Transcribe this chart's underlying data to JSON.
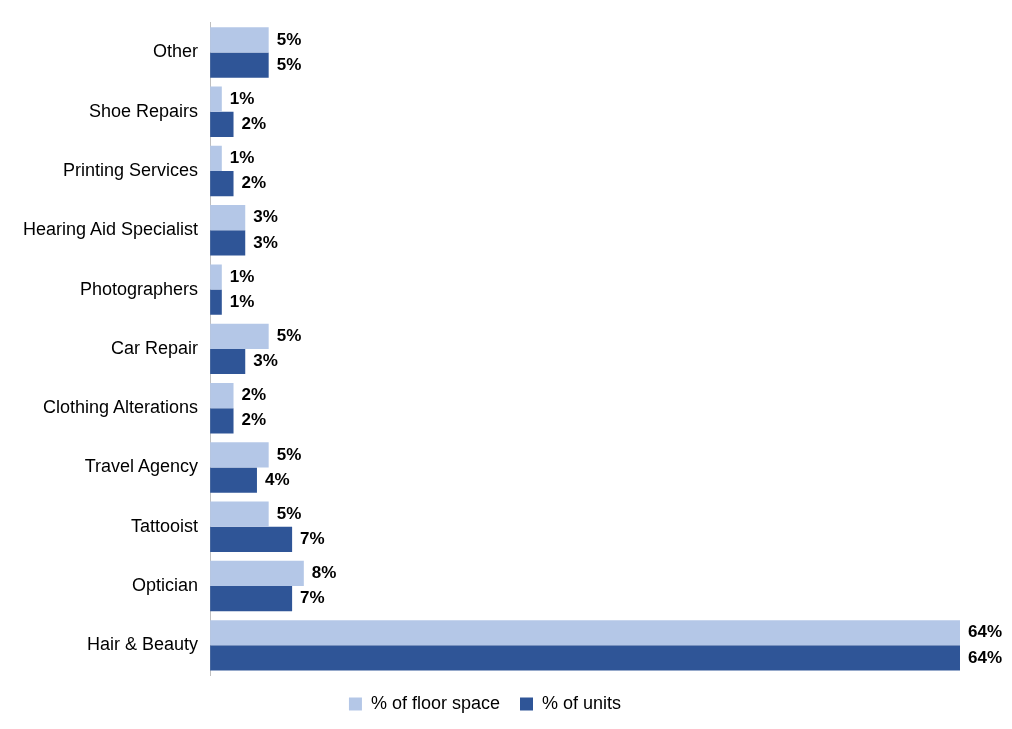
{
  "chart_data": {
    "type": "bar",
    "orientation": "horizontal",
    "categories": [
      "Other",
      "Shoe Repairs",
      "Printing Services",
      "Hearing Aid Specialist",
      "Photographers",
      "Car Repair",
      "Clothing Alterations",
      "Travel Agency",
      "Tattooist",
      "Optician",
      "Hair & Beauty"
    ],
    "series": [
      {
        "name": "% of floor space",
        "color": "#b4c7e7",
        "values": [
          5,
          1,
          1,
          3,
          1,
          5,
          2,
          5,
          5,
          8,
          64
        ],
        "value_labels": [
          "5%",
          "1%",
          "1%",
          "3%",
          "1%",
          "5%",
          "2%",
          "5%",
          "5%",
          "8%",
          "64%"
        ]
      },
      {
        "name": "% of units",
        "color": "#2f5597",
        "values": [
          5,
          2,
          2,
          3,
          1,
          3,
          2,
          4,
          7,
          7,
          64
        ],
        "value_labels": [
          "5%",
          "2%",
          "2%",
          "3%",
          "1%",
          "3%",
          "2%",
          "4%",
          "7%",
          "7%",
          "64%"
        ]
      }
    ],
    "legend": "bottom",
    "grid": false
  }
}
